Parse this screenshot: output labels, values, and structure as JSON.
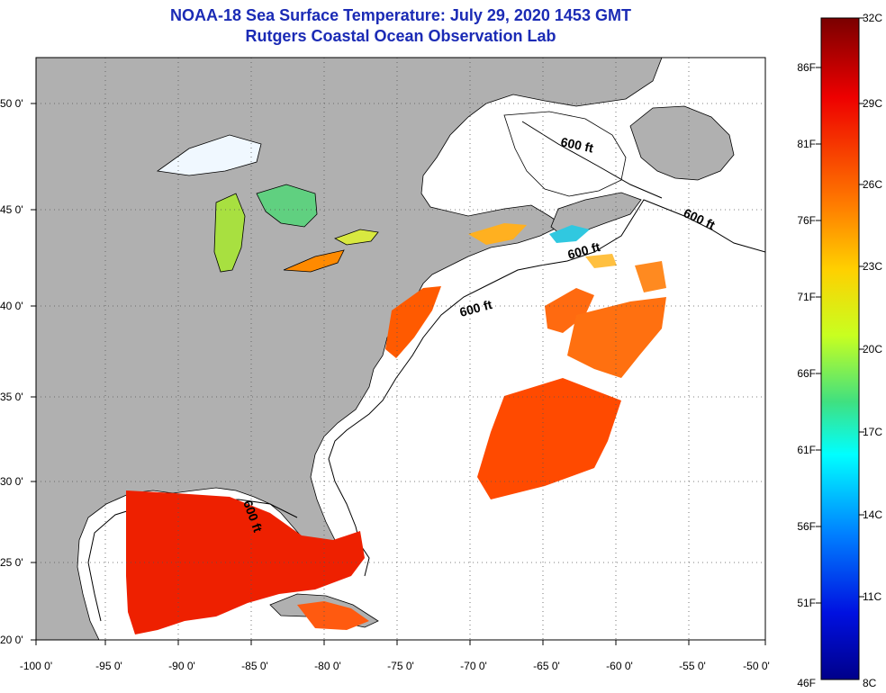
{
  "title_line1": "NOAA-18 Sea Surface Temperature:  July 29, 2020 1453 GMT",
  "title_line2": "Rutgers Coastal Ocean Observation Lab",
  "map": {
    "lon_labels": [
      "-100 0'",
      "-95 0'",
      "-90 0'",
      "-85 0'",
      "-80 0'",
      "-75 0'",
      "-70 0'",
      "-65 0'",
      "-60 0'",
      "-55 0'",
      "-50 0'"
    ],
    "lat_labels": [
      "50 0'",
      "45 0'",
      "40 0'",
      "35 0'",
      "30 0'",
      "25 0'",
      "20 0'"
    ],
    "contour_labels": [
      "600 ft",
      "600 ft",
      "600 ft",
      "600 ft",
      "600 ft"
    ],
    "colors": {
      "land": "#b0b0b0",
      "ocean": "#ffffff",
      "grid": "#555555"
    }
  },
  "colorbar": {
    "fahrenheit": [
      "86F",
      "81F",
      "76F",
      "71F",
      "66F",
      "61F",
      "56F",
      "51F",
      "46F"
    ],
    "celsius": [
      "32C",
      "29C",
      "26C",
      "23C",
      "20C",
      "17C",
      "14C",
      "11C",
      "8C"
    ]
  }
}
